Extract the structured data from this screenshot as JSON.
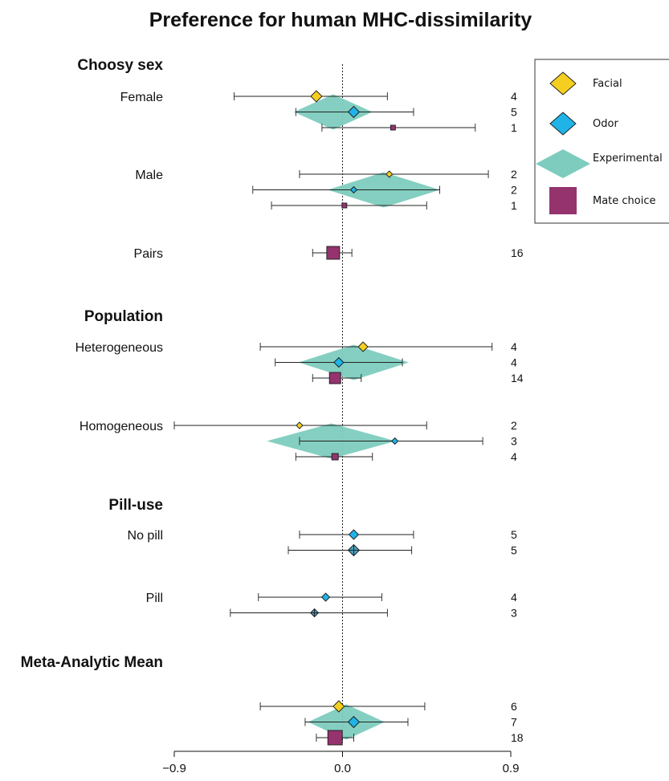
{
  "chart_data": {
    "type": "forest",
    "title": "Preference for human MHC-dissimilarity",
    "xlabel": "",
    "ylabel": "",
    "xlim": [
      -0.9,
      0.9
    ],
    "xticks": [
      -0.9,
      0.0,
      0.9
    ],
    "xtick_labels": [
      "−0.9",
      "0.0",
      "0.9"
    ],
    "reference_line": 0.0,
    "legend": {
      "placement": "top-right",
      "entries": [
        {
          "name": "Facial",
          "shape": "diamond",
          "color": "#F5CF1F"
        },
        {
          "name": "Odor",
          "shape": "diamond",
          "color": "#1FB3E8"
        },
        {
          "name": "Experimental",
          "shape": "wide-diamond",
          "color": "#7DCCBE"
        },
        {
          "name": "Mate choice",
          "shape": "square",
          "color": "#95336F"
        }
      ]
    },
    "sections": [
      {
        "label": "Choosy sex",
        "groups": [
          {
            "label": "Female",
            "experimental": {
              "estimate": -0.05,
              "lo": -0.26,
              "hi": 0.16
            },
            "rows": [
              {
                "type": "Facial",
                "estimate": -0.14,
                "lo": -0.58,
                "hi": 0.24,
                "n": "4",
                "size": 7
              },
              {
                "type": "Odor",
                "estimate": 0.06,
                "lo": -0.25,
                "hi": 0.38,
                "n": "5",
                "size": 7
              },
              {
                "type": "Mate choice",
                "estimate": 0.27,
                "lo": -0.11,
                "hi": 0.71,
                "n": "1",
                "size": 3
              }
            ]
          },
          {
            "label": "Male",
            "experimental": {
              "estimate": 0.22,
              "lo": -0.08,
              "hi": 0.52
            },
            "rows": [
              {
                "type": "Facial",
                "estimate": 0.25,
                "lo": -0.23,
                "hi": 0.78,
                "n": "2",
                "size": 4
              },
              {
                "type": "Odor",
                "estimate": 0.06,
                "lo": -0.48,
                "hi": 0.52,
                "n": "2",
                "size": 4
              },
              {
                "type": "Mate choice",
                "estimate": 0.01,
                "lo": -0.38,
                "hi": 0.45,
                "n": "1",
                "size": 3
              }
            ]
          },
          {
            "label": "Pairs",
            "rows": [
              {
                "type": "Mate choice",
                "estimate": -0.05,
                "lo": -0.16,
                "hi": 0.05,
                "n": "16",
                "size": 8
              }
            ]
          }
        ]
      },
      {
        "label": "Population",
        "groups": [
          {
            "label": "Heterogeneous",
            "experimental": {
              "estimate": 0.06,
              "lo": -0.23,
              "hi": 0.36
            },
            "rows": [
              {
                "type": "Facial",
                "estimate": 0.11,
                "lo": -0.44,
                "hi": 0.8,
                "n": "4",
                "size": 6
              },
              {
                "type": "Odor",
                "estimate": -0.02,
                "lo": -0.36,
                "hi": 0.32,
                "n": "4",
                "size": 6
              },
              {
                "type": "Mate choice",
                "estimate": -0.04,
                "lo": -0.16,
                "hi": 0.1,
                "n": "14",
                "size": 7
              }
            ]
          },
          {
            "label": "Homogeneous",
            "experimental": {
              "estimate": -0.06,
              "lo": -0.38,
              "hi": 0.31
            },
            "rows": [
              {
                "type": "Facial",
                "estimate": -0.23,
                "lo": -0.9,
                "hi": 0.45,
                "n": "2",
                "size": 4
              },
              {
                "type": "Odor",
                "estimate": 0.28,
                "lo": -0.23,
                "hi": 0.75,
                "n": "3",
                "size": 4
              },
              {
                "type": "Mate choice",
                "estimate": -0.04,
                "lo": -0.25,
                "hi": 0.16,
                "n": "4",
                "size": 4
              }
            ]
          }
        ]
      },
      {
        "label": "Pill-use",
        "groups": [
          {
            "label": "No pill",
            "rows": [
              {
                "type": "Odor",
                "estimate": 0.06,
                "lo": -0.23,
                "hi": 0.38,
                "n": "5",
                "size": 6
              },
              {
                "type": "Odor (Experimental)",
                "estimate": 0.06,
                "lo": -0.29,
                "hi": 0.37,
                "n": "5",
                "size": 7
              }
            ]
          },
          {
            "label": "Pill",
            "rows": [
              {
                "type": "Odor",
                "estimate": -0.09,
                "lo": -0.45,
                "hi": 0.21,
                "n": "4",
                "size": 5
              },
              {
                "type": "Odor (Experimental)",
                "estimate": -0.15,
                "lo": -0.6,
                "hi": 0.24,
                "n": "3",
                "size": 5
              }
            ]
          }
        ]
      },
      {
        "label": "Meta-Analytic Mean",
        "groups": [
          {
            "label": "",
            "experimental": {
              "estimate": 0.02,
              "lo": -0.18,
              "hi": 0.23
            },
            "rows": [
              {
                "type": "Facial",
                "estimate": -0.02,
                "lo": -0.44,
                "hi": 0.44,
                "n": "6",
                "size": 7
              },
              {
                "type": "Odor",
                "estimate": 0.06,
                "lo": -0.2,
                "hi": 0.35,
                "n": "7",
                "size": 7
              },
              {
                "type": "Mate choice",
                "estimate": -0.04,
                "lo": -0.14,
                "hi": 0.06,
                "n": "18",
                "size": 9
              }
            ]
          }
        ]
      }
    ]
  }
}
